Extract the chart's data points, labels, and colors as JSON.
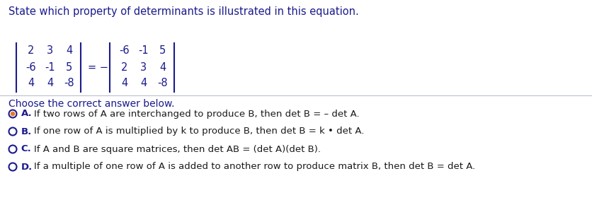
{
  "title": "State which property of determinants is illustrated in this equation.",
  "title_color": "#1a1a8c",
  "title_fontsize": 10.5,
  "matrix_left": [
    [
      "2",
      "3",
      "4"
    ],
    [
      "-6",
      "-1",
      "5"
    ],
    [
      "4",
      "4",
      "-8"
    ]
  ],
  "matrix_right": [
    [
      "-6",
      "-1",
      "5"
    ],
    [
      "2",
      "3",
      "4"
    ],
    [
      "4",
      "4",
      "-8"
    ]
  ],
  "equals_sign": "= -",
  "section2_title": "Choose the correct answer below.",
  "section2_color": "#1a1a8c",
  "options": [
    {
      "label": "A.",
      "text": "If two rows of A are interchanged to produce B, then det B = – det A.",
      "selected": true
    },
    {
      "label": "B.",
      "text": "If one row of A is multiplied by k to produce B, then det B = k • det A.",
      "selected": false
    },
    {
      "label": "C.",
      "text": "If A and B are square matrices, then det AB = (det A)(det B).",
      "selected": false
    },
    {
      "label": "D.",
      "text": "If a multiple of one row of A is added to another row to produce matrix B, then det B = det A.",
      "selected": false
    }
  ],
  "label_color": "#1a1a8c",
  "text_color": "#1a1a1a",
  "bg_color": "#ffffff",
  "matrix_color": "#1a1a8c",
  "option_fontsize": 9.5,
  "selected_fill_color": "#e87722",
  "radio_border_color": "#1a1a8c"
}
